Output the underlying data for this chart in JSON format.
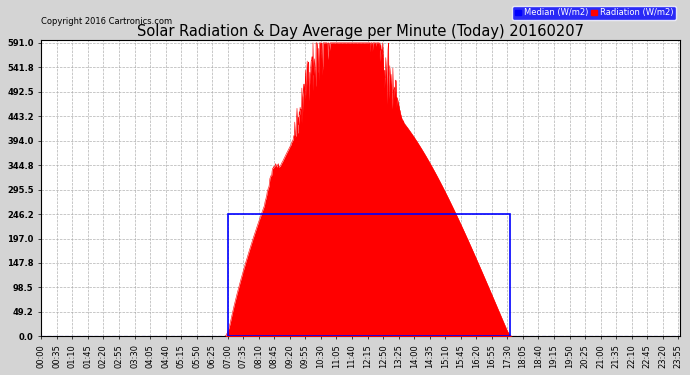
{
  "title": "Solar Radiation & Day Average per Minute (Today) 20160207",
  "copyright": "Copyright 2016 Cartronics.com",
  "legend_labels": [
    "Median (W/m2)",
    "Radiation (W/m2)"
  ],
  "legend_colors": [
    "blue",
    "red"
  ],
  "yticks": [
    0.0,
    49.2,
    98.5,
    147.8,
    197.0,
    246.2,
    295.5,
    344.8,
    394.0,
    443.2,
    492.5,
    541.8,
    591.0
  ],
  "ymax": 591.0,
  "ymin": 0.0,
  "background_color": "#d4d4d4",
  "plot_bg_color": "#ffffff",
  "grid_color": "#aaaaaa",
  "bar_color": "red",
  "median_color": "blue",
  "median_value": 246.2,
  "title_fontsize": 10.5,
  "tick_fontsize": 6.0,
  "minutes_per_tick": 35,
  "total_minutes": 1440,
  "sunrise_minute": 420,
  "sunset_minute": 1055
}
